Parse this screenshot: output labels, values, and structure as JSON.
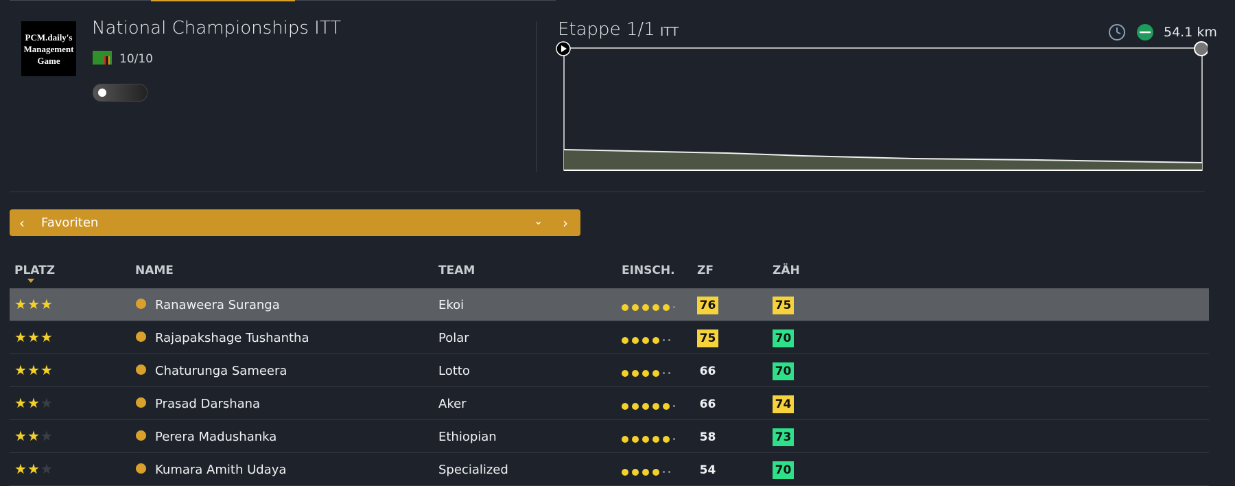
{
  "header": {
    "logo": [
      "PCM.daily's",
      "Management",
      "Game"
    ],
    "title": "National Championships ITT",
    "rating": "10/10"
  },
  "stage": {
    "name": "Etappe 1/1",
    "type": "ITT",
    "distance": "54.1 km"
  },
  "filter": {
    "label": "Favoriten"
  },
  "table": {
    "columns": [
      "PLATZ",
      "NAME",
      "TEAM",
      "EINSCH.",
      "ZF",
      "ZÄH"
    ],
    "stars_max": 3,
    "dots_max": 6,
    "rows": [
      {
        "stars": 3,
        "name": "Ranaweera Suranga",
        "team": "Ekoi",
        "einsch": 5,
        "zf": 76,
        "zf_color": "#f6d33c",
        "zah": 75,
        "zah_color": "#f6d33c"
      },
      {
        "stars": 3,
        "name": "Rajapakshage Tushantha",
        "team": "Polar",
        "einsch": 4,
        "zf": 75,
        "zf_color": "#f6d33c",
        "zah": 70,
        "zah_color": "#2fe08a"
      },
      {
        "stars": 3,
        "name": "Chaturunga Sameera",
        "team": "Lotto",
        "einsch": 4,
        "zf": 66,
        "zf_color": null,
        "zah": 70,
        "zah_color": "#2fe08a"
      },
      {
        "stars": 2,
        "name": "Prasad Darshana",
        "team": "Aker",
        "einsch": 5,
        "zf": 66,
        "zf_color": null,
        "zah": 74,
        "zah_color": "#f6d33c"
      },
      {
        "stars": 2,
        "name": "Perera Madushanka",
        "team": "Ethiopian",
        "einsch": 5,
        "zf": 58,
        "zf_color": null,
        "zah": 73,
        "zah_color": "#2fe08a"
      },
      {
        "stars": 2,
        "name": "Kumara Amith Udaya",
        "team": "Specialized",
        "einsch": 4,
        "zf": 54,
        "zf_color": null,
        "zah": 70,
        "zah_color": "#2fe08a"
      }
    ]
  }
}
